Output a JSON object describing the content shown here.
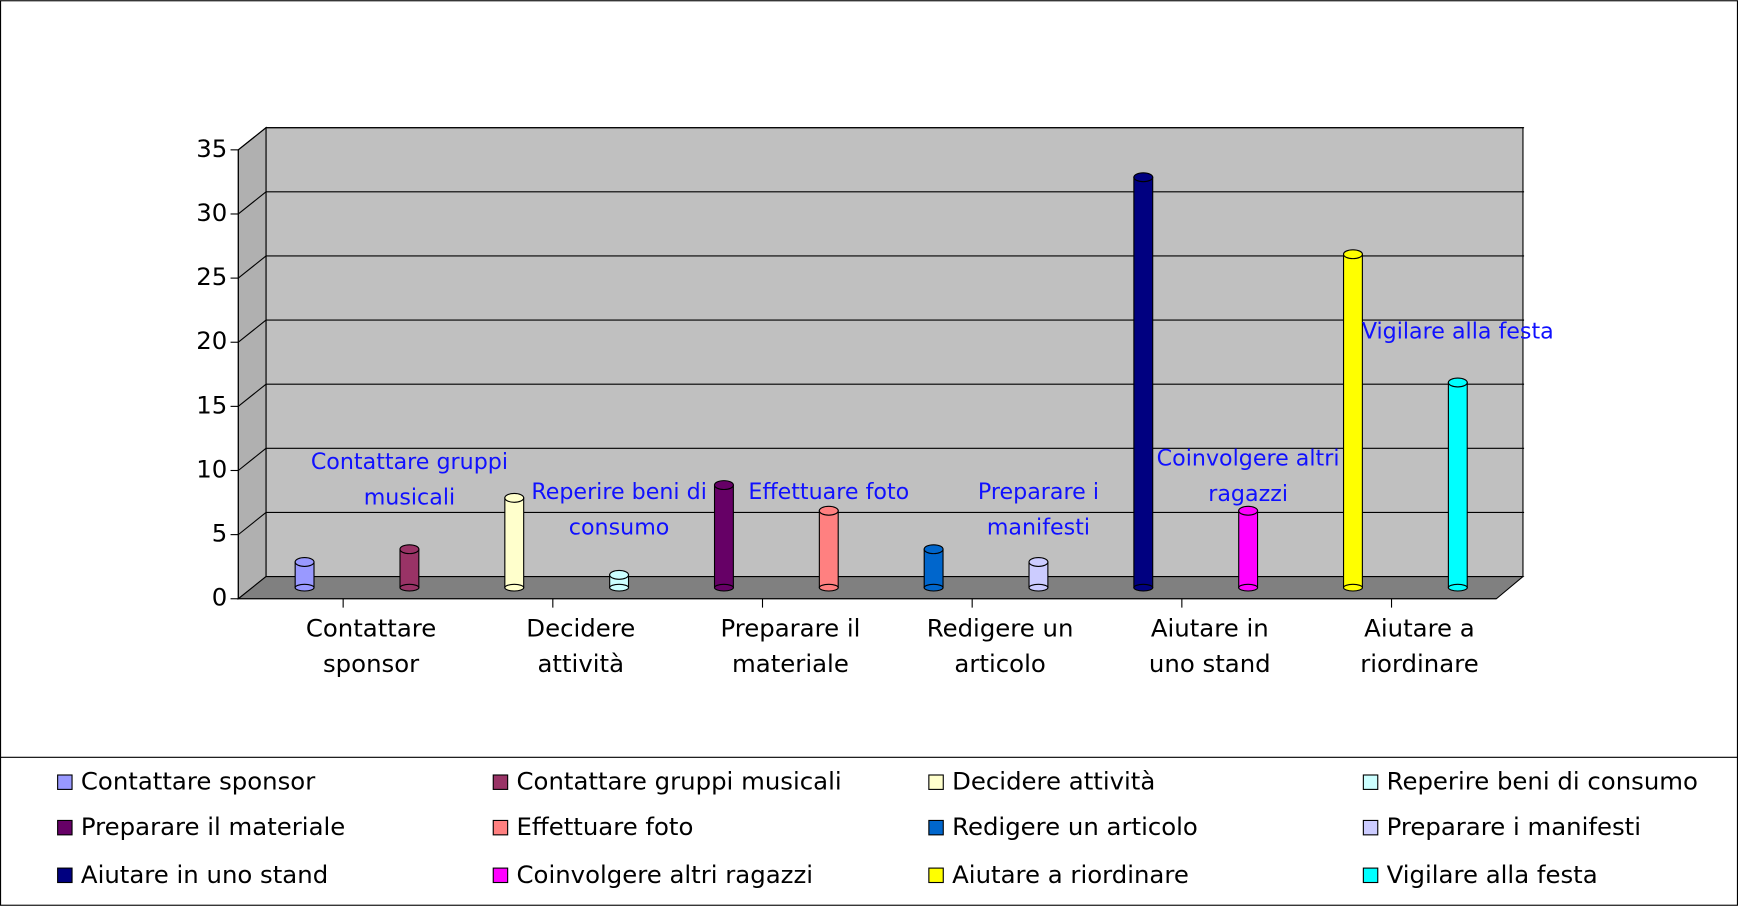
{
  "chart_data": {
    "type": "bar3d",
    "categories": [
      "Contattare sponsor",
      "Contattare gruppi musicali",
      "Decidere attività",
      "Reperire beni di consumo",
      "Preparare il materiale",
      "Effettuare foto",
      "Redigere un articolo",
      "Preparare i manifesti",
      "Aiutare in uno stand",
      "Coinvolgere altri ragazzi",
      "Aiutare a riordinare",
      "Vigilare alla festa"
    ],
    "values": [
      2,
      3,
      7,
      1,
      8,
      6,
      3,
      2,
      32,
      6,
      26,
      16
    ],
    "colors": [
      "#9999ff",
      "#993366",
      "#ffffcc",
      "#ccffff",
      "#660066",
      "#ff8080",
      "#0066cc",
      "#ccccff",
      "#000080",
      "#ff00ff",
      "#ffff00",
      "#00ffff"
    ],
    "ylim": [
      0,
      35
    ],
    "yticks": [
      0,
      5,
      10,
      15,
      20,
      25,
      30,
      35
    ],
    "grid": true,
    "legend": "bottom"
  }
}
